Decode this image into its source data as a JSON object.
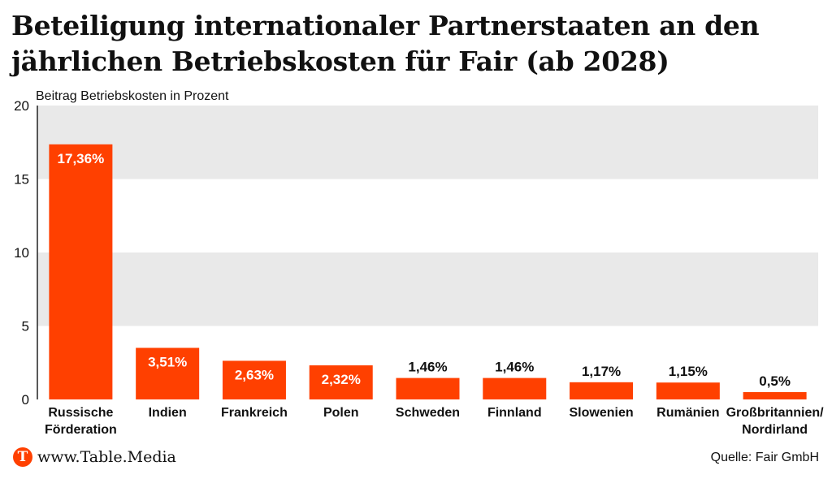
{
  "title_lines": [
    "Beteiligung internationaler Partnerstaaten an den",
    "jährlichen Betriebskosten für Fair (ab 2028)"
  ],
  "footer": {
    "brand_initial": "T",
    "brand": "www.Table.Media",
    "source": "Quelle: Fair GmbH"
  },
  "colors": {
    "bar": "#ff4000",
    "band": "#e9e9e9",
    "text": "#111111"
  },
  "chart_data": {
    "type": "bar",
    "ylabel": "Beitrag Betriebskosten in Prozent",
    "ylim": [
      0,
      20
    ],
    "yticks": [
      0,
      5,
      10,
      15,
      20
    ],
    "categories": [
      [
        "Russische",
        "Förderation"
      ],
      [
        "Indien"
      ],
      [
        "Frankreich"
      ],
      [
        "Polen"
      ],
      [
        "Schweden"
      ],
      [
        "Finnland"
      ],
      [
        "Slowenien"
      ],
      [
        "Rumänien"
      ],
      [
        "Großbritannien/",
        "Nordirland"
      ]
    ],
    "values": [
      17.36,
      3.51,
      2.63,
      2.32,
      1.46,
      1.46,
      1.17,
      1.15,
      0.5
    ],
    "data_labels": [
      "17,36%",
      "3,51%",
      "2,63%",
      "2,32%",
      "1,46%",
      "1,46%",
      "1,17%",
      "1,15%",
      "0,5%"
    ],
    "grid": "alternating bands"
  }
}
